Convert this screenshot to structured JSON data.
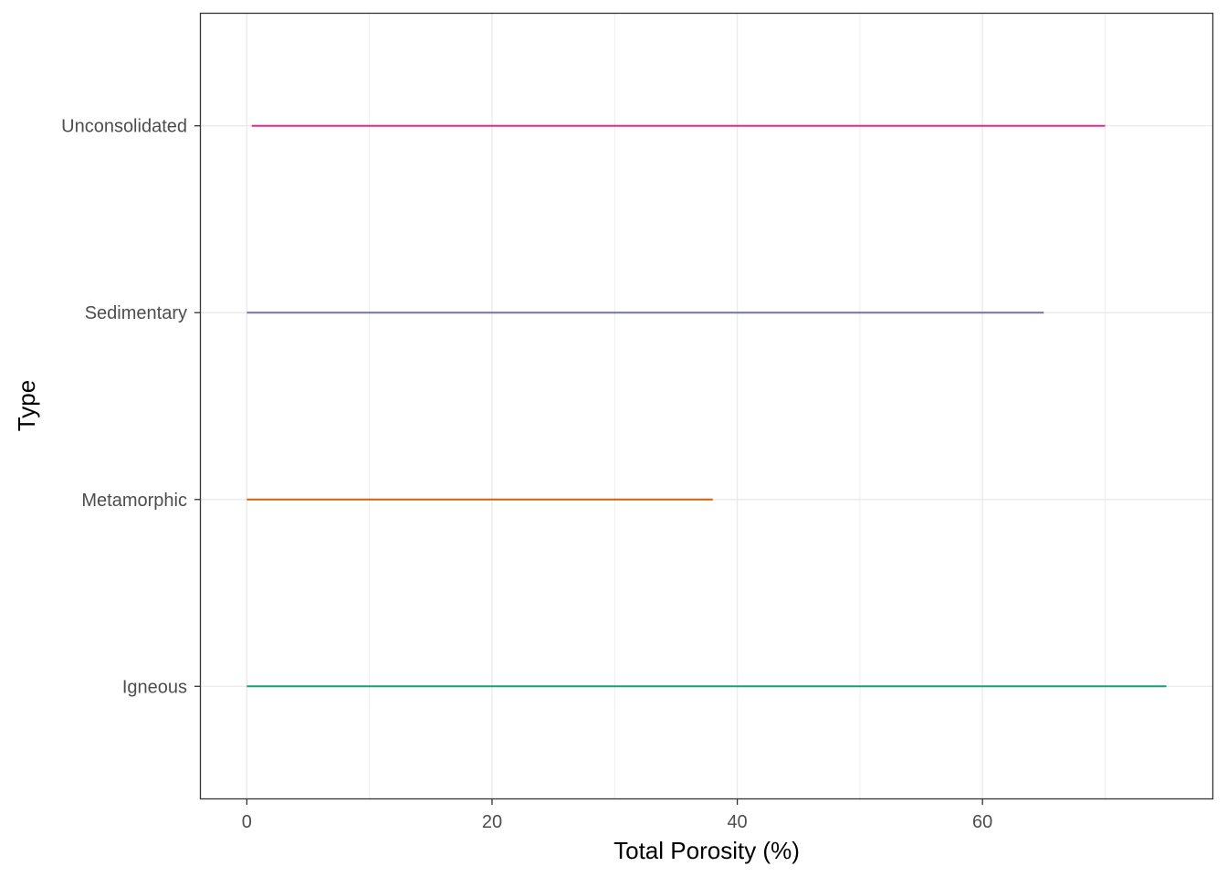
{
  "chart_data": {
    "type": "range",
    "title": "",
    "xlabel": "Total Porosity (%)",
    "ylabel": "Type",
    "xlim": [
      -3.75,
      78.75
    ],
    "x_ticks": [
      0,
      20,
      40,
      60
    ],
    "x_tick_labels": [
      "0",
      "20",
      "40",
      "60"
    ],
    "grid": true,
    "legend": "none",
    "categories": [
      "Igneous",
      "Metamorphic",
      "Sedimentary",
      "Unconsolidated"
    ],
    "series": [
      {
        "category": "Igneous",
        "min": 0,
        "max": 75,
        "color": "#1b9e77"
      },
      {
        "category": "Metamorphic",
        "min": 0,
        "max": 38,
        "color": "#d95f02"
      },
      {
        "category": "Sedimentary",
        "min": 0,
        "max": 65,
        "color": "#7570b3"
      },
      {
        "category": "Unconsolidated",
        "min": 0.4,
        "max": 70,
        "color": "#e7298a"
      }
    ]
  }
}
